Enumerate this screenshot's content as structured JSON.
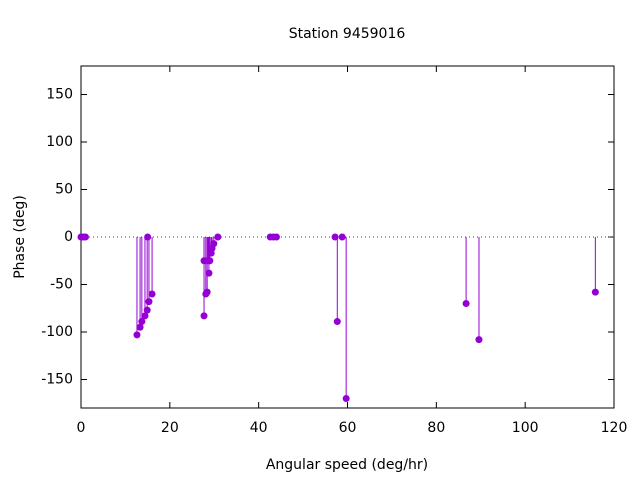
{
  "chart_data": {
    "type": "stem",
    "title": "Station 9459016",
    "x_label": "Angular speed (deg/hr)",
    "y_label": "Phase (deg)",
    "x": [
      0,
      0.5,
      1.0,
      12.6,
      13.3,
      13.7,
      14.4,
      14.9,
      15.0,
      15.3,
      16.0,
      27.7,
      27.7,
      28.1,
      28.4,
      28.6,
      28.8,
      29.0,
      29.3,
      29.5,
      29.9,
      30.8,
      42.6,
      43.3,
      44.0,
      57.2,
      57.7,
      58.8,
      59.7,
      86.7,
      89.6,
      115.8
    ],
    "values": [
      0,
      0,
      0,
      -103,
      -95,
      -89,
      -83,
      -77,
      0,
      -68,
      -60,
      -83,
      -25,
      -60,
      -58,
      -25,
      -38,
      -25,
      -17,
      -12,
      -7,
      0,
      0,
      0,
      0,
      0,
      -89,
      0,
      -170,
      -70,
      -108,
      -58
    ],
    "color": "#9400d3",
    "xlim": [
      0,
      120
    ],
    "xticks": [
      0,
      20,
      40,
      60,
      80,
      100,
      120
    ],
    "ylim": [
      -180,
      180
    ],
    "yticks": [
      -150,
      -100,
      -50,
      0,
      50,
      100,
      150
    ],
    "zero_axis": true
  }
}
